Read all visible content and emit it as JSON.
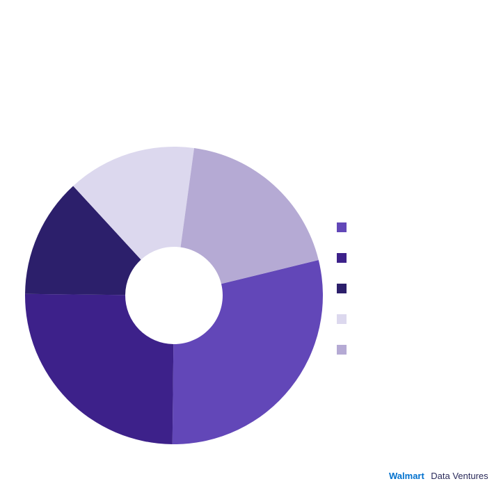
{
  "chart_data": {
    "type": "donut",
    "categories": [
      null,
      null,
      null,
      null,
      null
    ],
    "values": [
      29,
      25,
      13,
      14,
      19
    ],
    "colors": [
      "#6247b8",
      "#3d218a",
      "#2c1f6b",
      "#dcd8ee",
      "#b5aad4"
    ],
    "legend": "right"
  },
  "footer": {
    "brand": "Walmart",
    "text": "Data Ventures"
  }
}
